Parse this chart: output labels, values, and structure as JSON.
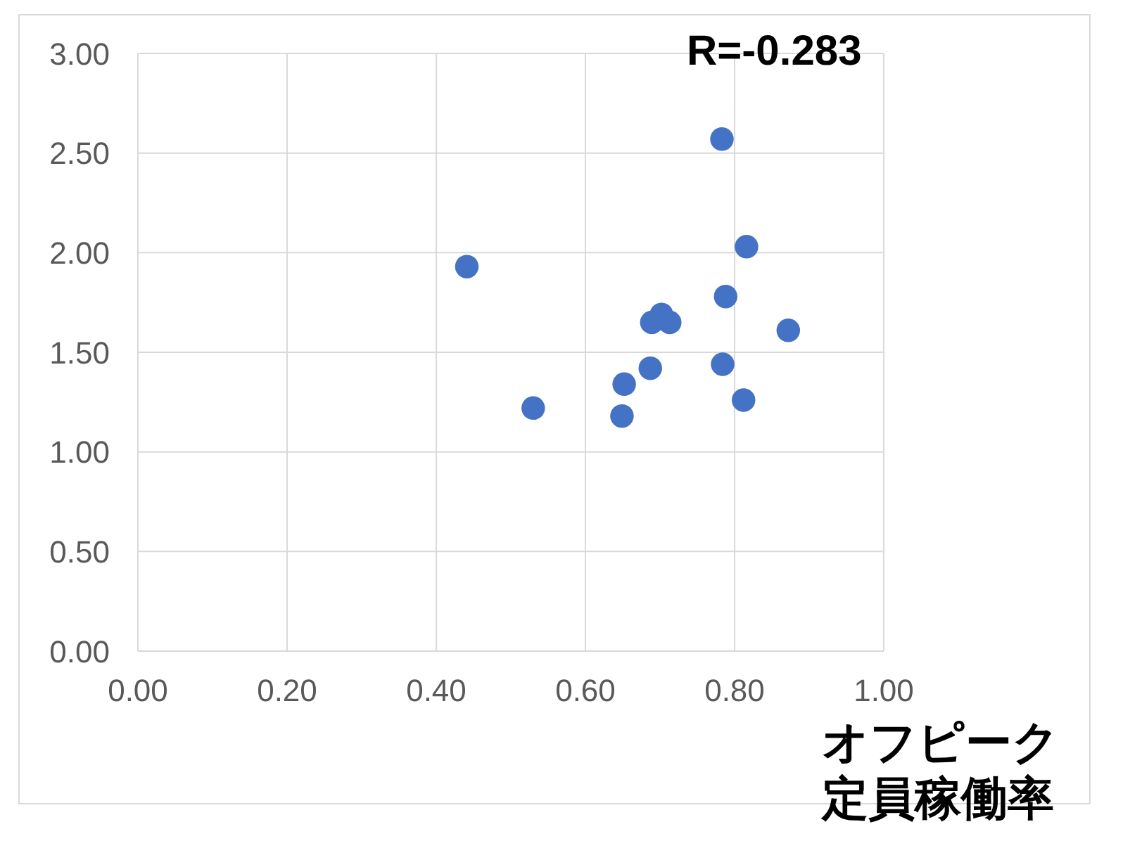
{
  "chart_data": {
    "type": "scatter",
    "xlabel": "オフピーク定員稼働率",
    "annotations": [
      "R=-0.283"
    ],
    "series": [
      {
        "color": "#4472c4",
        "x": [
          0.441,
          0.53,
          0.649,
          0.652,
          0.687,
          0.689,
          0.702,
          0.713,
          0.783,
          0.784,
          0.788,
          0.816,
          0.812,
          0.872
        ],
        "values": [
          1.93,
          1.22,
          1.18,
          1.34,
          1.42,
          1.65,
          1.69,
          1.65,
          2.57,
          1.44,
          1.78,
          2.03,
          1.26,
          1.61
        ]
      }
    ],
    "xlim": [
      0,
      1
    ],
    "xticks": [
      {
        "value": 0,
        "label": "0.00"
      },
      {
        "value": 0.2,
        "label": "0.20"
      },
      {
        "value": 0.4,
        "label": "0.40"
      },
      {
        "value": 0.6,
        "label": "0.60"
      },
      {
        "value": 0.8,
        "label": "0.80"
      },
      {
        "value": 1,
        "label": "1.00"
      }
    ],
    "ylim": [
      0,
      3
    ],
    "yticks": [
      {
        "value": 0,
        "label": "0.00"
      },
      {
        "value": 0.5,
        "label": "0.50"
      },
      {
        "value": 1,
        "label": "1.00"
      },
      {
        "value": 1.5,
        "label": "1.50"
      },
      {
        "value": 2,
        "label": "2.00"
      },
      {
        "value": 2.5,
        "label": "2.50"
      },
      {
        "value": 3,
        "label": "3.00"
      }
    ],
    "grid": true,
    "marker": "circle",
    "legend": false
  }
}
